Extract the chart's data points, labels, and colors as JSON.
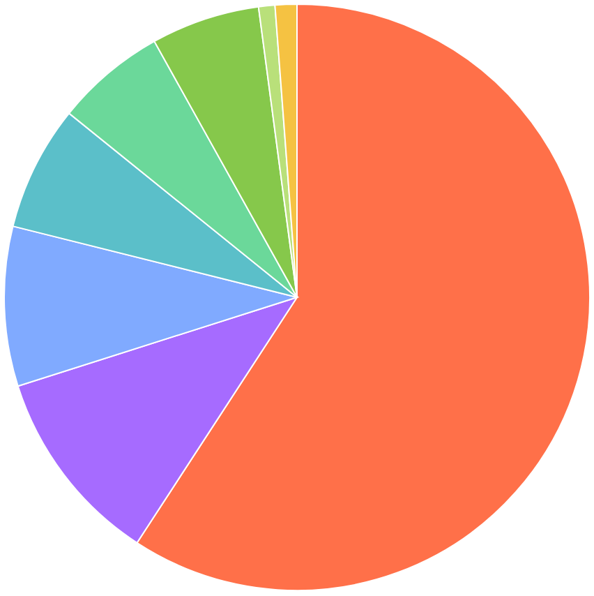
{
  "chart_data": {
    "type": "pie",
    "categories": [
      null,
      null,
      null,
      null,
      null,
      null,
      null,
      null
    ],
    "values": [
      59.2,
      10.9,
      8.8,
      6.9,
      6.1,
      6.0,
      0.9,
      1.2
    ],
    "colors": [
      "#ff7049",
      "#a66bff",
      "#80aaff",
      "#5bbfc9",
      "#6bd89a",
      "#86c84b",
      "#b9e07a",
      "#f5c242"
    ]
  }
}
